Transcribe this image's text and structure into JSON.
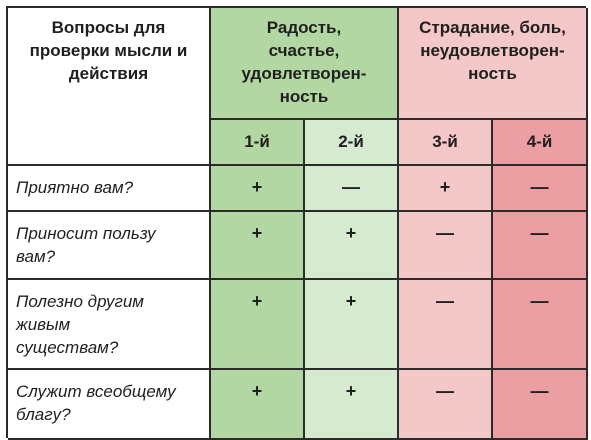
{
  "header": {
    "questions_label": "Вопросы для проверки мысли и действия",
    "questions_lines": [
      "Вопросы для",
      "проверки мысли и",
      "действия"
    ],
    "joy_label": "Радость, счастье, удовлетворенность",
    "joy_lines": [
      "Радость,",
      "счастье,",
      "удовлетворен-",
      "ность"
    ],
    "suffering_label": "Страдание, боль, неудовлетворенность",
    "suffering_lines": [
      "Страдание, боль,",
      "неудовлетворен-",
      "ность"
    ]
  },
  "columns": [
    "1-й",
    "2-й",
    "3-й",
    "4-й"
  ],
  "rows": [
    {
      "question_lines": [
        "Приятно вам?"
      ],
      "marks": [
        "+",
        "—",
        "+",
        "—"
      ]
    },
    {
      "question_lines": [
        "Приносит пользу",
        "вам?"
      ],
      "marks": [
        "+",
        "+",
        "—",
        "—"
      ]
    },
    {
      "question_lines": [
        "Полезно другим",
        "живым",
        "существам?"
      ],
      "marks": [
        "+",
        "+",
        "—",
        "—"
      ]
    },
    {
      "question_lines": [
        "Служит всеобщему",
        "благу?"
      ],
      "marks": [
        "+",
        "+",
        "—",
        "—"
      ]
    }
  ],
  "colors": {
    "joy_strong": "#b3d7a2",
    "joy_light": "#d6ead0",
    "suffer_light": "#f4c7c9",
    "suffer_strong": "#eb9fa3",
    "border": "#2b2b2b"
  }
}
